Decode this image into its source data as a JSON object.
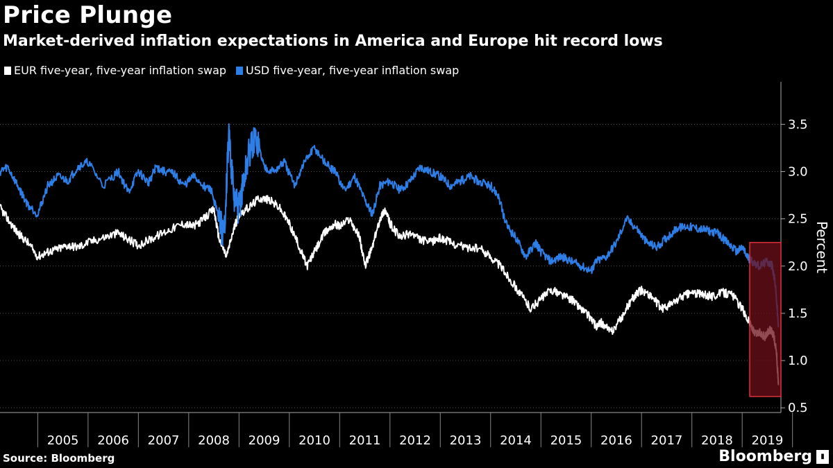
{
  "header": {
    "title": "Price Plunge",
    "subtitle": "Market-derived inflation expectations in America and Europe hit record lows"
  },
  "footer": {
    "source": "Source: Bloomberg",
    "brand": "Bloomberg"
  },
  "colors": {
    "eur": "#ffffff",
    "usd": "#2d7ee6",
    "highlight_fill": "#6b0f19",
    "highlight_border": "#e0323c",
    "grid": "#555555",
    "axis": "#aaaaaa"
  },
  "chart_data": {
    "type": "line",
    "title": "Price Plunge",
    "subtitle": "Market-derived inflation expectations in America and Europe hit record lows",
    "ylabel": "Percent",
    "xlabel": "",
    "ylim": [
      0.45,
      3.95
    ],
    "xlim": [
      2004.25,
      2019.77
    ],
    "yticks": [
      0.5,
      1.0,
      1.5,
      2.0,
      2.5,
      3.0,
      3.5
    ],
    "ytick_labels": [
      "0.5",
      "1.0",
      "1.5",
      "2.0",
      "2.5",
      "3.0",
      "3.5"
    ],
    "xtick_labels": [
      "2005",
      "2006",
      "2007",
      "2008",
      "2009",
      "2010",
      "2011",
      "2012",
      "2013",
      "2014",
      "2015",
      "2016",
      "2017",
      "2018",
      "2019"
    ],
    "grid": "horizontal dotted",
    "y_axis_position": "right",
    "legend_position": "top-left",
    "highlight": {
      "x_start": 2019.15,
      "x_end": 2019.77,
      "y_low": 0.62,
      "y_high": 2.25
    },
    "series": [
      {
        "name": "EUR five-year, five-year inflation swap",
        "color": "#ffffff",
        "x": [
          2004.25,
          2004.4,
          2004.6,
          2004.8,
          2005.0,
          2005.2,
          2005.4,
          2005.6,
          2005.8,
          2006.0,
          2006.3,
          2006.6,
          2006.8,
          2007.0,
          2007.3,
          2007.6,
          2007.9,
          2008.1,
          2008.3,
          2008.5,
          2008.6,
          2008.75,
          2008.9,
          2009.0,
          2009.2,
          2009.4,
          2009.6,
          2009.8,
          2010.0,
          2010.2,
          2010.35,
          2010.5,
          2010.7,
          2010.9,
          2011.0,
          2011.2,
          2011.4,
          2011.5,
          2011.65,
          2011.8,
          2011.9,
          2012.0,
          2012.2,
          2012.4,
          2012.6,
          2012.8,
          2013.0,
          2013.2,
          2013.5,
          2013.8,
          2014.0,
          2014.2,
          2014.4,
          2014.6,
          2014.8,
          2015.0,
          2015.2,
          2015.4,
          2015.6,
          2015.8,
          2016.0,
          2016.1,
          2016.2,
          2016.4,
          2016.6,
          2016.8,
          2017.0,
          2017.2,
          2017.4,
          2017.6,
          2017.8,
          2018.0,
          2018.2,
          2018.4,
          2018.6,
          2018.8,
          2019.0,
          2019.15,
          2019.25,
          2019.35,
          2019.45,
          2019.55,
          2019.62,
          2019.68,
          2019.72
        ],
        "values": [
          2.62,
          2.5,
          2.35,
          2.25,
          2.1,
          2.15,
          2.18,
          2.22,
          2.2,
          2.25,
          2.3,
          2.35,
          2.28,
          2.22,
          2.3,
          2.38,
          2.45,
          2.42,
          2.5,
          2.6,
          2.3,
          2.1,
          2.4,
          2.55,
          2.62,
          2.72,
          2.7,
          2.62,
          2.45,
          2.2,
          2.0,
          2.15,
          2.35,
          2.45,
          2.42,
          2.5,
          2.3,
          2.0,
          2.2,
          2.5,
          2.6,
          2.45,
          2.3,
          2.35,
          2.28,
          2.25,
          2.3,
          2.25,
          2.2,
          2.18,
          2.1,
          2.0,
          1.85,
          1.7,
          1.55,
          1.65,
          1.75,
          1.7,
          1.65,
          1.55,
          1.45,
          1.35,
          1.4,
          1.3,
          1.45,
          1.65,
          1.75,
          1.68,
          1.55,
          1.6,
          1.68,
          1.72,
          1.7,
          1.68,
          1.72,
          1.7,
          1.55,
          1.4,
          1.28,
          1.3,
          1.25,
          1.32,
          1.28,
          1.1,
          0.74
        ]
      },
      {
        "name": "USD five-year, five-year inflation swap",
        "color": "#2d7ee6",
        "x": [
          2004.25,
          2004.4,
          2004.6,
          2004.8,
          2005.0,
          2005.2,
          2005.4,
          2005.6,
          2005.8,
          2006.0,
          2006.3,
          2006.6,
          2006.8,
          2007.0,
          2007.2,
          2007.35,
          2007.5,
          2007.7,
          2007.9,
          2008.1,
          2008.3,
          2008.45,
          2008.6,
          2008.7,
          2008.8,
          2008.9,
          2009.0,
          2009.1,
          2009.2,
          2009.35,
          2009.5,
          2009.7,
          2009.9,
          2010.1,
          2010.3,
          2010.5,
          2010.7,
          2010.9,
          2011.1,
          2011.3,
          2011.5,
          2011.65,
          2011.8,
          2012.0,
          2012.2,
          2012.4,
          2012.6,
          2012.8,
          2013.0,
          2013.2,
          2013.4,
          2013.6,
          2013.8,
          2014.0,
          2014.15,
          2014.3,
          2014.5,
          2014.7,
          2014.9,
          2015.0,
          2015.2,
          2015.4,
          2015.6,
          2015.8,
          2016.0,
          2016.1,
          2016.3,
          2016.5,
          2016.7,
          2016.9,
          2017.1,
          2017.3,
          2017.5,
          2017.7,
          2017.9,
          2018.1,
          2018.3,
          2018.5,
          2018.7,
          2018.9,
          2019.0,
          2019.1,
          2019.2,
          2019.35,
          2019.5,
          2019.6,
          2019.66,
          2019.72
        ],
        "values": [
          3.0,
          3.05,
          2.85,
          2.65,
          2.55,
          2.85,
          2.95,
          2.9,
          3.05,
          3.1,
          2.85,
          3.0,
          2.78,
          3.0,
          2.88,
          3.05,
          3.0,
          2.98,
          2.85,
          2.95,
          2.85,
          2.8,
          2.5,
          2.3,
          3.4,
          2.7,
          2.6,
          2.9,
          3.2,
          3.35,
          3.05,
          3.0,
          3.1,
          2.85,
          3.1,
          3.25,
          3.1,
          3.0,
          2.8,
          2.95,
          2.7,
          2.55,
          2.85,
          2.9,
          2.8,
          2.9,
          3.05,
          3.0,
          2.95,
          2.85,
          2.9,
          2.95,
          2.88,
          2.85,
          2.75,
          2.45,
          2.3,
          2.1,
          2.25,
          2.15,
          2.05,
          2.1,
          2.05,
          2.0,
          1.95,
          2.05,
          2.1,
          2.25,
          2.5,
          2.4,
          2.25,
          2.2,
          2.3,
          2.4,
          2.42,
          2.4,
          2.38,
          2.35,
          2.25,
          2.15,
          2.2,
          2.1,
          2.05,
          2.0,
          2.05,
          2.0,
          1.8,
          1.35
        ]
      }
    ]
  }
}
